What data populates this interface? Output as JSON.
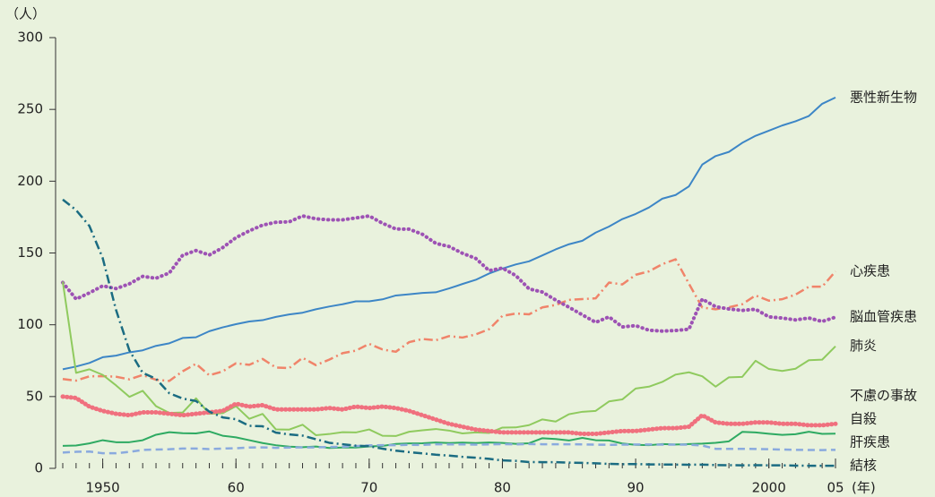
{
  "chart_data": {
    "type": "line",
    "y_unit": "（人）",
    "x_unit": "(年)",
    "x": [
      1947,
      1948,
      1949,
      1950,
      1951,
      1952,
      1953,
      1954,
      1955,
      1956,
      1957,
      1958,
      1959,
      1960,
      1961,
      1962,
      1963,
      1964,
      1965,
      1966,
      1967,
      1968,
      1969,
      1970,
      1971,
      1972,
      1973,
      1974,
      1975,
      1976,
      1977,
      1978,
      1979,
      1980,
      1981,
      1982,
      1983,
      1984,
      1985,
      1986,
      1987,
      1988,
      1989,
      1990,
      1991,
      1992,
      1993,
      1994,
      1995,
      1996,
      1997,
      1998,
      1999,
      2000,
      2001,
      2002,
      2003,
      2004,
      2005
    ],
    "xlim": [
      1947,
      2005
    ],
    "xticks": [
      1950,
      {
        "value": 1960,
        "label": "60"
      },
      {
        "value": 1970,
        "label": "70"
      },
      {
        "value": 1980,
        "label": "80"
      },
      {
        "value": 1990,
        "label": "90"
      },
      2000,
      {
        "value": 2005,
        "label": "05"
      }
    ],
    "ylim": [
      0,
      300
    ],
    "yticks": [
      0,
      50,
      100,
      150,
      200,
      250,
      300
    ],
    "series": [
      {
        "name": "悪性新生物",
        "color": "#3d86c6",
        "dash": "solid",
        "values": [
          69.0,
          70.9,
          73.4,
          77.4,
          78.5,
          80.8,
          82.2,
          85.3,
          87.1,
          90.8,
          91.3,
          95.5,
          98.2,
          100.4,
          102.3,
          103.2,
          105.5,
          107.2,
          108.4,
          110.8,
          112.7,
          114.3,
          116.3,
          116.3,
          117.7,
          120.4,
          121.2,
          122.2,
          122.6,
          125.3,
          128.4,
          131.3,
          135.7,
          139.1,
          142.0,
          144.2,
          148.3,
          152.5,
          156.1,
          158.5,
          164.2,
          168.4,
          173.6,
          177.2,
          181.7,
          187.8,
          190.4,
          196.4,
          211.6,
          217.5,
          220.4,
          226.7,
          231.6,
          235.2,
          238.8,
          241.7,
          245.4,
          253.9,
          258.3
        ]
      },
      {
        "name": "心疾患",
        "color": "#f0846a",
        "dash": "dashdot",
        "values": [
          62.2,
          61.1,
          64.1,
          64.2,
          63.8,
          62.0,
          65.0,
          61.7,
          60.9,
          67.6,
          72.8,
          64.8,
          67.5,
          73.2,
          72.1,
          76.2,
          70.2,
          69.8,
          77.0,
          71.9,
          75.7,
          80.2,
          82.0,
          86.7,
          82.8,
          81.2,
          87.9,
          90.1,
          89.2,
          92.1,
          91.1,
          93.3,
          96.9,
          106.2,
          107.8,
          107.3,
          112.1,
          113.8,
          117.3,
          117.9,
          118.4,
          129.4,
          128.1,
          134.8,
          137.2,
          142.2,
          145.6,
          128.6,
          112.0,
          110.8,
          112.2,
          114.3,
          120.4,
          116.8,
          117.8,
          121.0,
          126.5,
          126.5,
          137.2
        ]
      },
      {
        "name": "脳血管疾患",
        "color": "#9d52b4",
        "dash": "dot",
        "values": [
          129.4,
          117.9,
          122.2,
          127.1,
          125.2,
          128.5,
          133.7,
          132.4,
          136.1,
          148.4,
          151.7,
          148.6,
          153.7,
          160.7,
          165.4,
          169.4,
          171.4,
          171.7,
          175.8,
          173.8,
          173.1,
          173.1,
          174.4,
          175.8,
          170.7,
          166.7,
          166.6,
          163.0,
          156.7,
          154.5,
          149.8,
          146.2,
          137.7,
          139.5,
          134.3,
          125.0,
          122.8,
          117.2,
          112.2,
          106.9,
          101.7,
          105.5,
          98.5,
          99.4,
          96.2,
          95.6,
          96.0,
          96.9,
          117.9,
          112.6,
          111.0,
          110.0,
          110.8,
          105.5,
          104.7,
          103.4,
          104.7,
          102.3,
          105.3
        ]
      },
      {
        "name": "肺炎",
        "color": "#8fca5e",
        "dash": "solid",
        "values": [
          130.0,
          66.5,
          69.0,
          65.1,
          57.8,
          49.8,
          54.0,
          43.3,
          38.6,
          38.9,
          48.8,
          38.0,
          38.4,
          43.3,
          34.5,
          37.9,
          27.1,
          27.0,
          30.4,
          23.1,
          23.9,
          25.2,
          25.0,
          27.1,
          22.7,
          22.5,
          25.5,
          26.5,
          27.4,
          26.3,
          24.3,
          25.0,
          24.6,
          28.4,
          28.5,
          30.1,
          34.1,
          32.6,
          37.7,
          39.4,
          40.0,
          46.6,
          48.0,
          55.6,
          56.9,
          60.2,
          65.3,
          66.9,
          64.1,
          56.9,
          63.4,
          63.7,
          74.9,
          69.2,
          67.8,
          69.4,
          75.3,
          75.7,
          85.0
        ]
      },
      {
        "name": "不慮の事故",
        "color": "#f0707e",
        "dash": "thickdot",
        "values": [
          50,
          49,
          43,
          40,
          38,
          37,
          39,
          39,
          38,
          37,
          38,
          39,
          40,
          45,
          43,
          44,
          41,
          41,
          41,
          41,
          42,
          41,
          43,
          42,
          43,
          42,
          40,
          37,
          34,
          31,
          29,
          27,
          26,
          25,
          25,
          25,
          25,
          25,
          25,
          24,
          24,
          25,
          26,
          26,
          27,
          28,
          28,
          29,
          37,
          32,
          31,
          31,
          32,
          32,
          31,
          31,
          30,
          30,
          31
        ]
      },
      {
        "name": "自殺",
        "color": "#2eaa62",
        "dash": "solid",
        "values": [
          15.7,
          15.9,
          17.4,
          19.6,
          18.2,
          18.2,
          19.6,
          23.4,
          25.2,
          24.5,
          24.3,
          25.7,
          22.7,
          21.6,
          19.6,
          17.6,
          16.1,
          15.1,
          14.7,
          15.2,
          14.2,
          14.5,
          14.5,
          15.3,
          15.6,
          17.0,
          17.4,
          17.5,
          18.0,
          17.6,
          17.9,
          17.6,
          18.0,
          17.7,
          17.1,
          17.5,
          21.0,
          20.4,
          19.4,
          21.2,
          19.6,
          19.4,
          17.3,
          16.4,
          16.1,
          16.9,
          16.6,
          16.9,
          17.2,
          17.8,
          18.8,
          25.4,
          25.0,
          24.1,
          23.3,
          23.8,
          25.5,
          24.0,
          24.2
        ]
      },
      {
        "name": "肝疾患",
        "color": "#8aaade",
        "dash": "dash",
        "values": [
          11.0,
          11.5,
          11.7,
          10.5,
          10.5,
          11.5,
          12.8,
          13.1,
          13.3,
          13.8,
          13.8,
          13.4,
          13.8,
          14.0,
          14.5,
          14.6,
          14.3,
          14.5,
          14.6,
          14.6,
          14.9,
          15.0,
          15.5,
          16.0,
          16.1,
          16.1,
          16.4,
          16.3,
          16.8,
          16.7,
          16.7,
          16.5,
          16.7,
          16.9,
          16.7,
          16.9,
          16.8,
          16.8,
          16.8,
          16.7,
          16.5,
          16.4,
          16.5,
          16.6,
          16.6,
          16.5,
          16.5,
          16.5,
          15.9,
          13.6,
          13.6,
          13.6,
          13.5,
          13.3,
          13.1,
          12.9,
          12.8,
          12.7,
          12.9
        ]
      },
      {
        "name": "結核",
        "color": "#1b6c82",
        "dash": "dashdot",
        "values": [
          187.2,
          179.9,
          168.8,
          146.4,
          110.3,
          82.2,
          66.5,
          62.4,
          52.3,
          48.6,
          46.9,
          39.5,
          35.5,
          34.2,
          29.6,
          29.3,
          24.9,
          23.6,
          22.8,
          20.3,
          17.8,
          16.8,
          15.8,
          15.4,
          13.7,
          12.3,
          11.3,
          10.4,
          9.5,
          8.9,
          8.0,
          7.4,
          6.6,
          5.5,
          5.2,
          4.4,
          4.3,
          4.3,
          4.0,
          3.8,
          3.5,
          3.1,
          2.9,
          3.0,
          2.7,
          2.7,
          2.6,
          2.5,
          2.6,
          2.3,
          2.2,
          2.1,
          2.2,
          2.1,
          2.1,
          1.9,
          1.8,
          1.8,
          1.8
        ]
      }
    ]
  }
}
